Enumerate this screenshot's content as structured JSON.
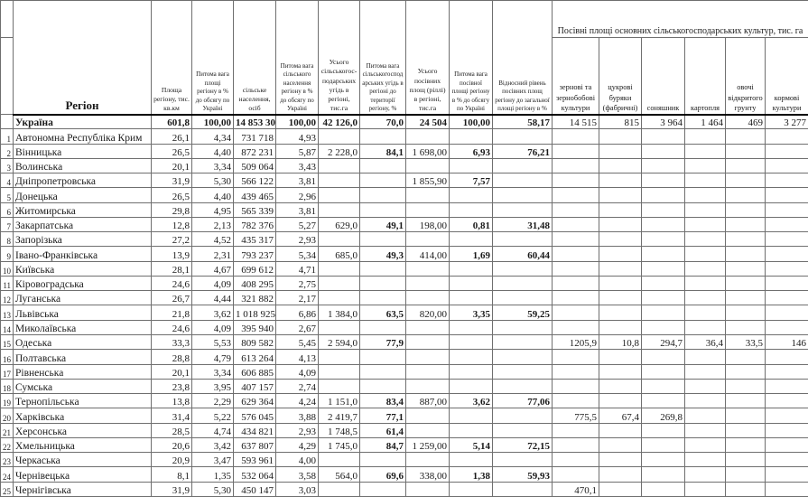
{
  "table": {
    "region_header": "Регіон",
    "col_headers": [
      "Площа регіону, тис. кв.км",
      "Питома вага площі регіону в % до обсягу по Україні",
      "сільське населення, осіб",
      "Питома вага сільського населення регіону в % до обсягу по Україні",
      "Усього сільськогос-подарських угідь в регіоні, тис.га",
      "Питома вага сільськогосподарських угідь в регіоні до території регіону, %",
      "Усього посівних площ (ріллі) в регіоні, тис.га",
      "Питома вага посівної площі регіону в % до обсягу по Україні",
      "Відносний рівень посівних площ регіону до загальної площі регіону в %"
    ],
    "crops_group_header": "Посівні площі  основних сільськогосподарських культур, тис. га",
    "crop_headers": [
      "зернові та зернобобові культури",
      "цукрові буряки (фабричні)",
      "соняшник",
      "картопля",
      "овочі відкритого грунту",
      "кормові культури"
    ],
    "rows": [
      {
        "num": "",
        "region": "Україна",
        "total": true,
        "values": [
          "601,8",
          "100,00",
          "14 853 306",
          "100,00",
          "42 126,0",
          "70,0",
          "24 504",
          "100,00",
          "58,17",
          "14 515",
          "815",
          "3 964",
          "1 464",
          "469",
          "3 277"
        ]
      },
      {
        "num": "1",
        "region": "Автономна Республіка Крим",
        "values": [
          "26,1",
          "4,34",
          "731 718",
          "4,93",
          "",
          "",
          "",
          "",
          "",
          "",
          "",
          "",
          "",
          "",
          ""
        ]
      },
      {
        "num": "2",
        "region": "Вінницька",
        "values": [
          "26,5",
          "4,40",
          "872 231",
          "5,87",
          "2 228,0",
          "84,1",
          "1 698,00",
          "6,93",
          "76,21",
          "",
          "",
          "",
          "",
          "",
          ""
        ]
      },
      {
        "num": "3",
        "region": "Волинська",
        "values": [
          "20,1",
          "3,34",
          "509 064",
          "3,43",
          "",
          "",
          "",
          "",
          "",
          "",
          "",
          "",
          "",
          "",
          ""
        ]
      },
      {
        "num": "4",
        "region": "Дніпропетровська",
        "values": [
          "31,9",
          "5,30",
          "566 122",
          "3,81",
          "",
          "",
          "1 855,90",
          "7,57",
          "",
          "",
          "",
          "",
          "",
          "",
          ""
        ]
      },
      {
        "num": "5",
        "region": "Донецька",
        "values": [
          "26,5",
          "4,40",
          "439 465",
          "2,96",
          "",
          "",
          "",
          "",
          "",
          "",
          "",
          "",
          "",
          "",
          ""
        ]
      },
      {
        "num": "6",
        "region": "Житомирська",
        "values": [
          "29,8",
          "4,95",
          "565 339",
          "3,81",
          "",
          "",
          "",
          "",
          "",
          "",
          "",
          "",
          "",
          "",
          ""
        ]
      },
      {
        "num": "7",
        "region": "Закарпатська",
        "values": [
          "12,8",
          "2,13",
          "782 376",
          "5,27",
          "629,0",
          "49,1",
          "198,00",
          "0,81",
          "31,48",
          "",
          "",
          "",
          "",
          "",
          ""
        ]
      },
      {
        "num": "8",
        "region": "Запорізька",
        "values": [
          "27,2",
          "4,52",
          "435 317",
          "2,93",
          "",
          "",
          "",
          "",
          "",
          "",
          "",
          "",
          "",
          "",
          ""
        ]
      },
      {
        "num": "9",
        "region": "Івано-Франківська",
        "values": [
          "13,9",
          "2,31",
          "793 237",
          "5,34",
          "685,0",
          "49,3",
          "414,00",
          "1,69",
          "60,44",
          "",
          "",
          "",
          "",
          "",
          ""
        ]
      },
      {
        "num": "10",
        "region": "Київська",
        "values": [
          "28,1",
          "4,67",
          "699 612",
          "4,71",
          "",
          "",
          "",
          "",
          "",
          "",
          "",
          "",
          "",
          "",
          ""
        ]
      },
      {
        "num": "11",
        "region": "Кіровоградська",
        "values": [
          "24,6",
          "4,09",
          "408 295",
          "2,75",
          "",
          "",
          "",
          "",
          "",
          "",
          "",
          "",
          "",
          "",
          ""
        ]
      },
      {
        "num": "12",
        "region": "Луганська",
        "values": [
          "26,7",
          "4,44",
          "321 882",
          "2,17",
          "",
          "",
          "",
          "",
          "",
          "",
          "",
          "",
          "",
          "",
          ""
        ]
      },
      {
        "num": "13",
        "region": "Львівська",
        "values": [
          "21,8",
          "3,62",
          "1 018 925",
          "6,86",
          "1 384,0",
          "63,5",
          "820,00",
          "3,35",
          "59,25",
          "",
          "",
          "",
          "",
          "",
          ""
        ]
      },
      {
        "num": "14",
        "region": "Миколаївська",
        "values": [
          "24,6",
          "4,09",
          "395 940",
          "2,67",
          "",
          "",
          "",
          "",
          "",
          "",
          "",
          "",
          "",
          "",
          ""
        ]
      },
      {
        "num": "15",
        "region": "Одеська",
        "selected": true,
        "values": [
          "33,3",
          "5,53",
          "809 582",
          "5,45",
          "2 594,0",
          "77,9",
          "",
          "",
          "",
          "1205,9",
          "10,8",
          "294,7",
          "36,4",
          "33,5",
          "146"
        ]
      },
      {
        "num": "16",
        "region": "Полтавська",
        "values": [
          "28,8",
          "4,79",
          "613 264",
          "4,13",
          "",
          "",
          "",
          "",
          "",
          "",
          "",
          "",
          "",
          "",
          ""
        ]
      },
      {
        "num": "17",
        "region": "Рівненська",
        "values": [
          "20,1",
          "3,34",
          "606 885",
          "4,09",
          "",
          "",
          "",
          "",
          "",
          "",
          "",
          "",
          "",
          "",
          ""
        ]
      },
      {
        "num": "18",
        "region": "Сумська",
        "values": [
          "23,8",
          "3,95",
          "407 157",
          "2,74",
          "",
          "",
          "",
          "",
          "",
          "",
          "",
          "",
          "",
          "",
          ""
        ]
      },
      {
        "num": "19",
        "region": "Тернопільська",
        "values": [
          "13,8",
          "2,29",
          "629 364",
          "4,24",
          "1 151,0",
          "83,4",
          "887,00",
          "3,62",
          "77,06",
          "",
          "",
          "",
          "",
          "",
          ""
        ]
      },
      {
        "num": "20",
        "region": "Харківська",
        "values": [
          "31,4",
          "5,22",
          "576 045",
          "3,88",
          "2 419,7",
          "77,1",
          "",
          "",
          "",
          "775,5",
          "67,4",
          "269,8",
          "",
          "",
          ""
        ]
      },
      {
        "num": "21",
        "region": "Херсонська",
        "values": [
          "28,5",
          "4,74",
          "434 821",
          "2,93",
          "1 748,5",
          "61,4",
          "",
          "",
          "",
          "",
          "",
          "",
          "",
          "",
          ""
        ]
      },
      {
        "num": "22",
        "region": "Хмельницька",
        "values": [
          "20,6",
          "3,42",
          "637 807",
          "4,29",
          "1 745,0",
          "84,7",
          "1 259,00",
          "5,14",
          "72,15",
          "",
          "",
          "",
          "",
          "",
          ""
        ]
      },
      {
        "num": "23",
        "region": "Черкаська",
        "values": [
          "20,9",
          "3,47",
          "593 961",
          "4,00",
          "",
          "",
          "",
          "",
          "",
          "",
          "",
          "",
          "",
          "",
          ""
        ]
      },
      {
        "num": "24",
        "region": "Чернівецька",
        "values": [
          "8,1",
          "1,35",
          "532 064",
          "3,58",
          "564,0",
          "69,6",
          "338,00",
          "1,38",
          "59,93",
          "",
          "",
          "",
          "",
          "",
          ""
        ]
      },
      {
        "num": "25",
        "region": "Чернігівська",
        "values": [
          "31,9",
          "5,30",
          "450 147",
          "3,03",
          "",
          "",
          "",
          "",
          "",
          "470,1",
          "",
          "",
          "",
          "",
          ""
        ]
      }
    ]
  }
}
